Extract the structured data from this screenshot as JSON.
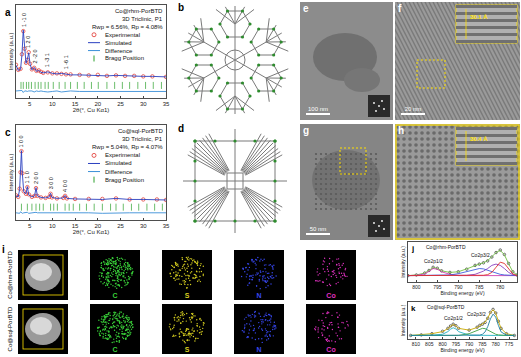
{
  "chart_data": [
    {
      "panel": "a",
      "type": "line",
      "title": "Co@rhm-PorBTD",
      "annotations": [
        "3D Triclinic, P1",
        "Rwp = 6.56%, Rp = 4.08%"
      ],
      "x_label": "2θ(°, Cu Kα1)",
      "y_label": "Intensity (a.u.)",
      "xlim": [
        2,
        35
      ],
      "xticks": [
        5,
        10,
        15,
        20,
        25,
        30,
        35
      ],
      "ylim": [
        -0.35,
        1.5
      ],
      "tick_labels": "x",
      "legend": "right",
      "x": [
        2,
        2.5,
        3,
        3.3,
        3.6,
        3.9,
        4.2,
        4.5,
        4.8,
        5.1,
        5.5,
        6,
        6.5,
        7,
        7.5,
        8,
        9,
        10,
        11,
        12,
        13,
        14,
        16,
        18,
        20,
        22,
        24,
        26,
        28,
        30,
        32,
        35
      ],
      "series": [
        {
          "name": "Experimental",
          "type": "scatter",
          "marker": "circle-open",
          "color": "#e0302a",
          "values": [
            0.31,
            0.21,
            0.23,
            0.52,
            0.98,
            0.63,
            0.35,
            0.41,
            0.56,
            0.33,
            0.22,
            0.25,
            0.19,
            0.2,
            0.17,
            0.15,
            0.16,
            0.14,
            0.14,
            0.13,
            0.12,
            0.12,
            0.11,
            0.1,
            0.11,
            0.09,
            0.1,
            0.09,
            0.09,
            0.08,
            0.08,
            0.07
          ]
        },
        {
          "name": "Simulated",
          "type": "line",
          "color": "#2a3fc0",
          "values": [
            0.3,
            0.2,
            0.22,
            0.5,
            1.0,
            0.62,
            0.34,
            0.42,
            0.55,
            0.32,
            0.21,
            0.26,
            0.18,
            0.2,
            0.16,
            0.15,
            0.17,
            0.14,
            0.13,
            0.14,
            0.12,
            0.11,
            0.11,
            0.1,
            0.1,
            0.09,
            0.1,
            0.09,
            0.08,
            0.08,
            0.08,
            0.07
          ]
        },
        {
          "name": "Difference",
          "type": "line",
          "color": "#3a8fd8",
          "values": [
            -0.21,
            -0.21,
            -0.21,
            -0.2,
            -0.24,
            -0.21,
            -0.21,
            -0.22,
            -0.21,
            -0.21,
            -0.21,
            -0.23,
            -0.21,
            -0.22,
            -0.21,
            -0.22,
            -0.23,
            -0.22,
            -0.21,
            -0.23,
            -0.22,
            -0.21,
            -0.22,
            -0.22,
            -0.21,
            -0.22,
            -0.22,
            -0.22,
            -0.21,
            -0.22,
            -0.22,
            -0.22
          ]
        },
        {
          "name": "Bragg Position",
          "type": "bragg",
          "marker": "line-ns-open",
          "color": "#2ca02c",
          "x": [
            3.1,
            3.6,
            4.3,
            4.8,
            5.4,
            6.2,
            6.9,
            7.5,
            8.4,
            9.1,
            10.2,
            11.5,
            12.8,
            14,
            15.5,
            17,
            18.6,
            20.1,
            22,
            23.7,
            25.4,
            27,
            28.8,
            30.5,
            32.2,
            34
          ],
          "values": [
            -0.1,
            -0.1,
            -0.1,
            -0.1,
            -0.1,
            -0.1,
            -0.1,
            -0.1,
            -0.1,
            -0.1,
            -0.1,
            -0.1,
            -0.1,
            -0.1,
            -0.1,
            -0.1,
            -0.1,
            -0.1,
            -0.1,
            -0.1,
            -0.1,
            -0.1,
            -0.1,
            -0.1,
            -0.1,
            -0.1
          ]
        }
      ],
      "peak_labels": [
        {
          "x": 3.6,
          "y": 1.03,
          "text": "1 -1 0"
        },
        {
          "x": 4.8,
          "y": 0.6,
          "text": "1 2 0"
        },
        {
          "x": 6.2,
          "y": 0.3,
          "text": "2 -2 0"
        },
        {
          "x": 9,
          "y": 0.22,
          "text": "1 -3 1"
        },
        {
          "x": 13,
          "y": 0.18,
          "text": "1 -6 1"
        }
      ]
    },
    {
      "panel": "c",
      "type": "line",
      "title": "Co@sql-PorBTD",
      "annotations": [
        "3D Triclinic, P1",
        "Rwp = 5.04%, Rp = 4.07%"
      ],
      "x_label": "2θ(°, Cu Kα1)",
      "y_label": "Intensity (a.u.)",
      "xlim": [
        2,
        35
      ],
      "xticks": [
        5,
        10,
        15,
        20,
        25,
        30,
        35
      ],
      "ylim": [
        -0.35,
        1.5
      ],
      "tick_labels": "x",
      "legend": "right",
      "x": [
        2,
        2.5,
        2.8,
        3.0,
        3.2,
        3.4,
        3.7,
        4.2,
        4.5,
        4.8,
        5.5,
        6.1,
        6.4,
        6.7,
        7.5,
        8.5,
        9.3,
        9.6,
        9.9,
        11,
        12.4,
        12.8,
        13.2,
        15,
        18,
        21,
        24,
        27,
        30,
        33,
        35
      ],
      "series": [
        {
          "name": "Experimental",
          "type": "scatter",
          "marker": "circle-open",
          "color": "#e0302a",
          "values": [
            0.13,
            0.1,
            0.26,
            0.58,
            0.99,
            0.56,
            0.21,
            0.16,
            0.29,
            0.15,
            0.1,
            0.12,
            0.27,
            0.12,
            0.09,
            0.08,
            0.1,
            0.16,
            0.09,
            0.07,
            0.08,
            0.12,
            0.07,
            0.06,
            0.06,
            0.06,
            0.07,
            0.05,
            0.05,
            0.05,
            0.04
          ]
        },
        {
          "name": "Simulated",
          "type": "line",
          "color": "#2a3fc0",
          "values": [
            0.12,
            0.1,
            0.25,
            0.6,
            1.0,
            0.55,
            0.2,
            0.16,
            0.3,
            0.14,
            0.1,
            0.12,
            0.28,
            0.12,
            0.09,
            0.08,
            0.1,
            0.17,
            0.09,
            0.07,
            0.08,
            0.13,
            0.07,
            0.06,
            0.06,
            0.05,
            0.07,
            0.05,
            0.05,
            0.05,
            0.04
          ]
        },
        {
          "name": "Difference",
          "type": "line",
          "color": "#3a8fd8",
          "values": [
            -0.21,
            -0.21,
            -0.22,
            -0.19,
            -0.2,
            -0.22,
            -0.21,
            -0.21,
            -0.2,
            -0.22,
            -0.21,
            -0.21,
            -0.2,
            -0.21,
            -0.21,
            -0.21,
            -0.21,
            -0.2,
            -0.21,
            -0.21,
            -0.21,
            -0.2,
            -0.21,
            -0.21,
            -0.21,
            -0.22,
            -0.21,
            -0.21,
            -0.21,
            -0.21,
            -0.21
          ]
        },
        {
          "name": "Bragg Position",
          "type": "bragg",
          "marker": "line-ns-open",
          "color": "#2ca02c",
          "x": [
            3.2,
            4.5,
            5.5,
            6.4,
            7.2,
            8.0,
            9.6,
            10.3,
            11.1,
            12.8,
            13.7,
            14.6,
            16,
            17.5,
            19.2,
            21,
            22.8,
            24,
            25.6,
            27.4,
            29,
            30.8,
            32.5,
            34.2
          ],
          "values": [
            -0.1,
            -0.1,
            -0.1,
            -0.1,
            -0.1,
            -0.1,
            -0.1,
            -0.1,
            -0.1,
            -0.1,
            -0.1,
            -0.1,
            -0.1,
            -0.1,
            -0.1,
            -0.1,
            -0.1,
            -0.1,
            -0.1,
            -0.1,
            -0.1,
            -0.1,
            -0.1,
            -0.1
          ]
        }
      ],
      "peak_labels": [
        {
          "x": 3.2,
          "y": 1.03,
          "text": "1 0 0"
        },
        {
          "x": 4.5,
          "y": 0.33,
          "text": "1 1 0"
        },
        {
          "x": 6.4,
          "y": 0.31,
          "text": "2 0 0"
        },
        {
          "x": 9.6,
          "y": 0.2,
          "text": "3 0 0"
        },
        {
          "x": 12.8,
          "y": 0.16,
          "text": "4 0 0"
        }
      ]
    },
    {
      "panel": "j",
      "type": "line",
      "title": "Co@rhm-PorBTD",
      "x_label": "Binding energy (eV)",
      "y_label": "Intensity (a.u.)",
      "xlim": [
        802,
        776
      ],
      "xticks": [
        800,
        795,
        790,
        785,
        780
      ],
      "ylim": [
        0,
        1.25
      ],
      "tick_labels": "x",
      "x": [
        802,
        800,
        798,
        797,
        796,
        795,
        794,
        792,
        790,
        788,
        786,
        785,
        784,
        783,
        782,
        781,
        780,
        779,
        778,
        777,
        776
      ],
      "series": [
        {
          "type": "scatter",
          "marker": "circle-open",
          "color": "#333333",
          "values": [
            0.2,
            0.22,
            0.28,
            0.36,
            0.46,
            0.43,
            0.35,
            0.3,
            0.32,
            0.4,
            0.52,
            0.56,
            0.6,
            0.66,
            0.78,
            0.92,
            1.0,
            0.86,
            0.58,
            0.32,
            0.22
          ]
        },
        {
          "type": "line",
          "color": "#6fbf3f",
          "values": [
            0.2,
            0.22,
            0.28,
            0.37,
            0.45,
            0.43,
            0.35,
            0.3,
            0.32,
            0.41,
            0.52,
            0.56,
            0.6,
            0.67,
            0.79,
            0.92,
            0.99,
            0.85,
            0.57,
            0.32,
            0.22
          ]
        },
        {
          "type": "line",
          "color": "#d040b0",
          "values": [
            0.2,
            0.21,
            0.25,
            0.33,
            0.42,
            0.4,
            0.32,
            0.24,
            0.2,
            0.2,
            0.2,
            0.2,
            0.2,
            0.2,
            0.2,
            0.2,
            0.2,
            0.2,
            0.2,
            0.2,
            0.2
          ]
        },
        {
          "type": "line",
          "color": "#3f5fdf",
          "values": [
            0.2,
            0.2,
            0.2,
            0.2,
            0.2,
            0.2,
            0.2,
            0.22,
            0.26,
            0.33,
            0.4,
            0.42,
            0.41,
            0.37,
            0.32,
            0.27,
            0.24,
            0.22,
            0.21,
            0.2,
            0.2
          ]
        },
        {
          "type": "line",
          "color": "#8a3fbf",
          "values": [
            0.2,
            0.2,
            0.2,
            0.2,
            0.2,
            0.2,
            0.2,
            0.2,
            0.2,
            0.21,
            0.24,
            0.28,
            0.34,
            0.42,
            0.52,
            0.56,
            0.52,
            0.42,
            0.3,
            0.23,
            0.2
          ]
        },
        {
          "type": "line",
          "color": "#e0302a",
          "values": [
            0.2,
            0.2,
            0.2,
            0.2,
            0.2,
            0.2,
            0.2,
            0.2,
            0.2,
            0.2,
            0.2,
            0.2,
            0.21,
            0.23,
            0.3,
            0.46,
            0.62,
            0.58,
            0.4,
            0.25,
            0.2
          ]
        }
      ],
      "peak_labels": [
        {
          "x": 796,
          "y": 0.5,
          "text": "Co2p1/2"
        },
        {
          "x": 782,
          "y": 1.0,
          "text": "Co2p3/2"
        }
      ]
    },
    {
      "panel": "k",
      "type": "line",
      "title": "Co@sql-PorBTD",
      "x_label": "Binding energy (eV)",
      "y_label": "Intensity (a.u.)",
      "xlim": [
        813,
        772
      ],
      "xticks": [
        810,
        805,
        800,
        795,
        790,
        785,
        780,
        775
      ],
      "ylim": [
        0,
        1.25
      ],
      "tick_labels": "x",
      "x": [
        812,
        808,
        804,
        800,
        798,
        797,
        796,
        795,
        794,
        790,
        787,
        786,
        785,
        784,
        783,
        782,
        781,
        780,
        779,
        778,
        776,
        773
      ],
      "series": [
        {
          "type": "scatter",
          "marker": "circle-open",
          "color": "#333333",
          "values": [
            0.12,
            0.14,
            0.18,
            0.26,
            0.36,
            0.44,
            0.5,
            0.45,
            0.36,
            0.3,
            0.4,
            0.46,
            0.5,
            0.56,
            0.7,
            0.9,
            1.0,
            0.88,
            0.6,
            0.36,
            0.18,
            0.12
          ]
        },
        {
          "type": "line",
          "color": "#c8a800",
          "values": [
            0.12,
            0.14,
            0.18,
            0.25,
            0.35,
            0.43,
            0.49,
            0.45,
            0.36,
            0.3,
            0.39,
            0.45,
            0.5,
            0.57,
            0.71,
            0.89,
            0.99,
            0.87,
            0.6,
            0.36,
            0.18,
            0.12
          ]
        },
        {
          "type": "line",
          "color": "#20b0c0",
          "values": [
            0.12,
            0.12,
            0.13,
            0.16,
            0.25,
            0.33,
            0.38,
            0.34,
            0.25,
            0.13,
            0.12,
            0.12,
            0.12,
            0.12,
            0.12,
            0.12,
            0.12,
            0.12,
            0.12,
            0.12,
            0.12,
            0.12
          ]
        },
        {
          "type": "line",
          "color": "#40a040",
          "values": [
            0.12,
            0.12,
            0.12,
            0.12,
            0.12,
            0.12,
            0.12,
            0.12,
            0.12,
            0.18,
            0.3,
            0.34,
            0.36,
            0.35,
            0.3,
            0.24,
            0.19,
            0.16,
            0.14,
            0.13,
            0.12,
            0.12
          ]
        },
        {
          "type": "line",
          "color": "#2080a0",
          "values": [
            0.12,
            0.12,
            0.12,
            0.12,
            0.12,
            0.12,
            0.12,
            0.12,
            0.12,
            0.12,
            0.12,
            0.13,
            0.16,
            0.24,
            0.42,
            0.68,
            0.84,
            0.74,
            0.46,
            0.24,
            0.13,
            0.12
          ]
        }
      ],
      "peak_labels": [
        {
          "x": 796,
          "y": 0.55,
          "text": "Co2p1/2"
        },
        {
          "x": 783,
          "y": 1.0,
          "text": "Co2p3/2"
        }
      ]
    }
  ],
  "structures": [
    {
      "panel": "b"
    },
    {
      "panel": "d"
    }
  ],
  "tem_images": [
    {
      "panel": "e",
      "scale_bar": "100 nm"
    },
    {
      "panel": "f",
      "scale_bar": "20 nm",
      "inset_spacing": "30.1 Å"
    },
    {
      "panel": "g",
      "scale_bar": "50 nm"
    },
    {
      "panel": "h",
      "inset_spacing": "30.4 Å"
    }
  ],
  "eds_maps": {
    "panel": "i",
    "rows": [
      {
        "sample": "Co@rhm-PorBTD",
        "elements": [
          {
            "symbol": "C",
            "color": "#39d039"
          },
          {
            "symbol": "S",
            "color": "#d8d020"
          },
          {
            "symbol": "N",
            "color": "#3848f0"
          },
          {
            "symbol": "Co",
            "color": "#e030c0"
          }
        ]
      },
      {
        "sample": "Co@sql-PorBTD",
        "elements": [
          {
            "symbol": "C",
            "color": "#39d039"
          },
          {
            "symbol": "S",
            "color": "#d8d020"
          },
          {
            "symbol": "N",
            "color": "#3848f0"
          },
          {
            "symbol": "Co",
            "color": "#e030c0"
          }
        ]
      }
    ]
  }
}
